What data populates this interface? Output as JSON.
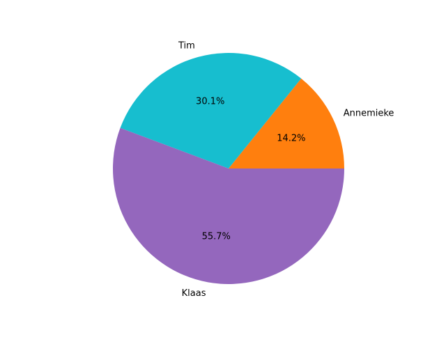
{
  "chart_data": {
    "type": "pie",
    "title": "",
    "slices": [
      {
        "label": "Annemieke",
        "value": 14.2,
        "pct_label": "14.2%",
        "color": "#ff7f0e"
      },
      {
        "label": "Tim",
        "value": 30.1,
        "pct_label": "30.1%",
        "color": "#17becf"
      },
      {
        "label": "Klaas",
        "value": 55.7,
        "pct_label": "55.7%",
        "color": "#9467bd"
      }
    ],
    "start_angle_deg": 0,
    "direction": "counterclockwise",
    "legend": "none"
  }
}
